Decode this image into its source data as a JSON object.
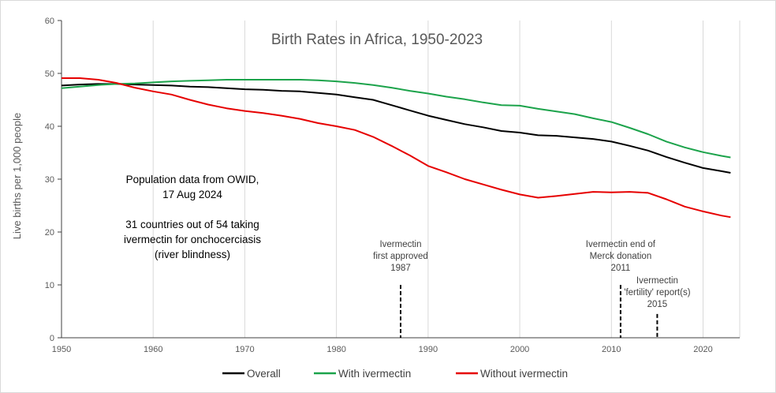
{
  "chart_data": {
    "type": "line",
    "title": "Birth Rates in Africa, 1950-2023",
    "xlabel": "",
    "ylabel": "Live births per 1,000 people",
    "xlim": [
      1950,
      2024
    ],
    "ylim": [
      0,
      60
    ],
    "x_ticks": [
      1950,
      1960,
      1970,
      1980,
      1990,
      2000,
      2010,
      2020
    ],
    "y_ticks": [
      0,
      10,
      20,
      30,
      40,
      50,
      60
    ],
    "grid": "vertical",
    "legend_position": "bottom",
    "series": [
      {
        "name": "Overall",
        "color": "#000000",
        "x": [
          1950,
          1952,
          1954,
          1956,
          1958,
          1960,
          1962,
          1964,
          1966,
          1968,
          1970,
          1972,
          1974,
          1976,
          1978,
          1980,
          1982,
          1984,
          1986,
          1988,
          1990,
          1992,
          1994,
          1996,
          1998,
          2000,
          2002,
          2004,
          2006,
          2008,
          2010,
          2012,
          2014,
          2016,
          2018,
          2020,
          2022,
          2023
        ],
        "values": [
          47.7,
          47.9,
          48.0,
          48.0,
          47.9,
          47.8,
          47.7,
          47.5,
          47.4,
          47.2,
          47.0,
          46.9,
          46.7,
          46.6,
          46.3,
          46.0,
          45.5,
          45.0,
          44.0,
          43.0,
          42.0,
          41.2,
          40.4,
          39.8,
          39.1,
          38.8,
          38.3,
          38.2,
          37.9,
          37.6,
          37.1,
          36.3,
          35.4,
          34.2,
          33.1,
          32.1,
          31.5,
          31.2
        ]
      },
      {
        "name": "With ivermectin",
        "color": "#1ca34b",
        "x": [
          1950,
          1952,
          1954,
          1956,
          1958,
          1960,
          1962,
          1964,
          1966,
          1968,
          1970,
          1972,
          1974,
          1976,
          1978,
          1980,
          1982,
          1984,
          1986,
          1988,
          1990,
          1992,
          1994,
          1996,
          1998,
          2000,
          2002,
          2004,
          2006,
          2008,
          2010,
          2012,
          2014,
          2016,
          2018,
          2020,
          2022,
          2023
        ],
        "values": [
          47.2,
          47.5,
          47.8,
          48.0,
          48.1,
          48.3,
          48.5,
          48.6,
          48.7,
          48.8,
          48.8,
          48.8,
          48.8,
          48.8,
          48.7,
          48.5,
          48.2,
          47.8,
          47.3,
          46.7,
          46.2,
          45.6,
          45.1,
          44.5,
          44.0,
          43.9,
          43.3,
          42.8,
          42.3,
          41.5,
          40.8,
          39.7,
          38.5,
          37.1,
          36.0,
          35.1,
          34.4,
          34.1
        ]
      },
      {
        "name": "Without ivermectin",
        "color": "#e60000",
        "x": [
          1950,
          1952,
          1954,
          1956,
          1958,
          1960,
          1962,
          1964,
          1966,
          1968,
          1970,
          1972,
          1974,
          1976,
          1978,
          1980,
          1982,
          1984,
          1986,
          1988,
          1990,
          1992,
          1994,
          1996,
          1998,
          2000,
          2002,
          2004,
          2006,
          2008,
          2010,
          2012,
          2014,
          2016,
          2018,
          2020,
          2022,
          2023
        ],
        "values": [
          49.1,
          49.1,
          48.8,
          48.2,
          47.3,
          46.6,
          46.0,
          45.0,
          44.1,
          43.4,
          42.9,
          42.5,
          42.0,
          41.4,
          40.6,
          40.0,
          39.3,
          38.0,
          36.3,
          34.5,
          32.5,
          31.3,
          30.0,
          29.0,
          28.0,
          27.1,
          26.5,
          26.8,
          27.2,
          27.6,
          27.5,
          27.6,
          27.4,
          26.2,
          24.8,
          23.9,
          23.1,
          22.8
        ]
      }
    ],
    "annotations": [
      {
        "year": 1987,
        "lines": [
          "Ivermectin",
          "first approved",
          "1987"
        ],
        "line_from": 0,
        "line_to": 10
      },
      {
        "year": 2011,
        "lines": [
          "Ivermectin end of",
          "Merck donation",
          "2011"
        ],
        "line_from": 0,
        "line_to": 10
      },
      {
        "year": 2015,
        "lines": [
          "Ivermectin",
          "'fertility' report(s)",
          "2015"
        ],
        "line_from": 0,
        "line_to": 4.5
      }
    ],
    "note": {
      "lines": [
        "Population data from OWID,",
        "17 Aug 2024",
        "",
        "31 countries out of 54 taking",
        "ivermectin for onchocerciasis",
        "(river blindness)"
      ]
    }
  }
}
